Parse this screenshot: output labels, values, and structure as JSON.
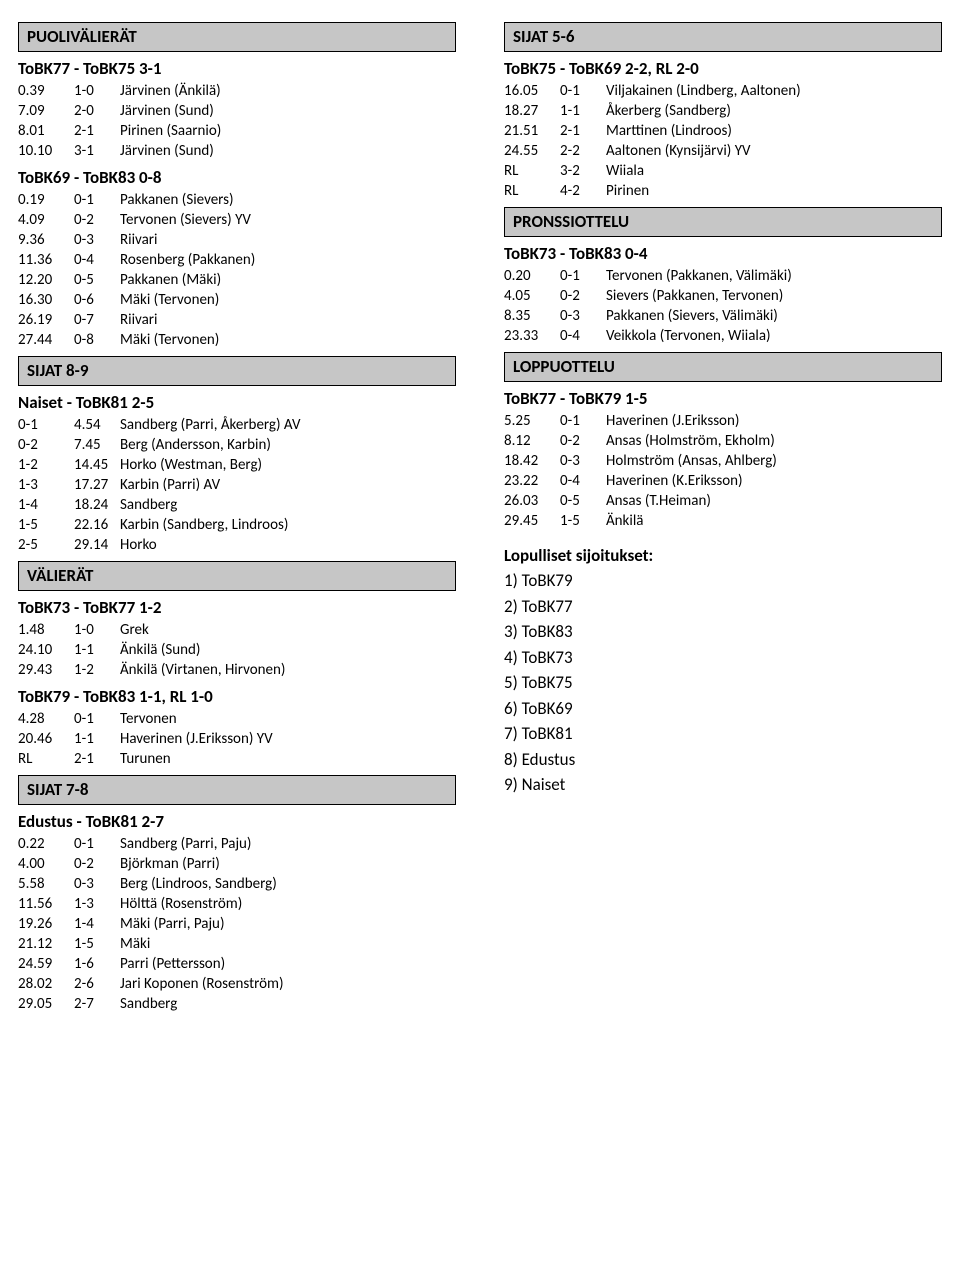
{
  "left": {
    "sec1": {
      "title": "PUOLIVÄLIERÄT",
      "match1": {
        "heading": "ToBK77 - ToBK75 3-1",
        "goals": [
          {
            "t": "0.39",
            "s": "1-0",
            "d": "Järvinen (Änkilä)"
          },
          {
            "t": "7.09",
            "s": "2-0",
            "d": "Järvinen (Sund)"
          },
          {
            "t": "8.01",
            "s": "2-1",
            "d": "Pirinen (Saarnio)"
          },
          {
            "t": "10.10",
            "s": "3-1",
            "d": "Järvinen (Sund)"
          }
        ]
      },
      "match2": {
        "heading": "ToBK69 - ToBK83 0-8",
        "goals": [
          {
            "t": "0.19",
            "s": "0-1",
            "d": "Pakkanen (Sievers)"
          },
          {
            "t": "4.09",
            "s": "0-2",
            "d": "Tervonen (Sievers) YV"
          },
          {
            "t": "9.36",
            "s": "0-3",
            "d": "Riivari"
          },
          {
            "t": "11.36",
            "s": "0-4",
            "d": "Rosenberg (Pakkanen)"
          },
          {
            "t": "12.20",
            "s": "0-5",
            "d": "Pakkanen (Mäki)"
          },
          {
            "t": "16.30",
            "s": "0-6",
            "d": "Mäki (Tervonen)"
          },
          {
            "t": "26.19",
            "s": "0-7",
            "d": "Riivari"
          },
          {
            "t": "27.44",
            "s": "0-8",
            "d": "Mäki (Tervonen)"
          }
        ]
      }
    },
    "sec2": {
      "title": "SIJAT 8-9",
      "match1": {
        "heading": "Naiset - ToBK81 2-5",
        "goals": [
          {
            "t": "0-1",
            "s": "4.54",
            "d": "Sandberg (Parri, Åkerberg) AV"
          },
          {
            "t": "0-2",
            "s": "7.45",
            "d": "Berg (Andersson, Karbin)"
          },
          {
            "t": "1-2",
            "s": "14.45",
            "d": "Horko (Westman, Berg)"
          },
          {
            "t": "1-3",
            "s": "17.27",
            "d": "Karbin (Parri) AV"
          },
          {
            "t": "1-4",
            "s": "18.24",
            "d": "Sandberg"
          },
          {
            "t": "1-5",
            "s": "22.16",
            "d": "Karbin (Sandberg, Lindroos)"
          },
          {
            "t": "2-5",
            "s": "29.14",
            "d": "Horko"
          }
        ]
      }
    },
    "sec3": {
      "title": "VÄLIERÄT",
      "match1": {
        "heading": "ToBK73 - ToBK77 1-2",
        "goals": [
          {
            "t": "1.48",
            "s": "1-0",
            "d": "Grek"
          },
          {
            "t": "24.10",
            "s": "1-1",
            "d": "Änkilä (Sund)"
          },
          {
            "t": "29.43",
            "s": "1-2",
            "d": "Änkilä (Virtanen, Hirvonen)"
          }
        ]
      },
      "match2": {
        "heading": "ToBK79 - ToBK83 1-1, RL 1-0",
        "goals": [
          {
            "t": "4.28",
            "s": "0-1",
            "d": "Tervonen"
          },
          {
            "t": "20.46",
            "s": "1-1",
            "d": "Haverinen (J.Eriksson) YV"
          },
          {
            "t": "RL",
            "s": "2-1",
            "d": "Turunen"
          }
        ]
      }
    },
    "sec4": {
      "title": "SIJAT 7-8",
      "match1": {
        "heading": "Edustus - ToBK81 2-7",
        "goals": [
          {
            "t": "0.22",
            "s": "0-1",
            "d": "Sandberg (Parri, Paju)"
          },
          {
            "t": "4.00",
            "s": "0-2",
            "d": "Björkman (Parri)"
          },
          {
            "t": "5.58",
            "s": "0-3",
            "d": "Berg (Lindroos, Sandberg)"
          },
          {
            "t": "11.56",
            "s": "1-3",
            "d": "Hölttä (Rosenström)"
          },
          {
            "t": "19.26",
            "s": "1-4",
            "d": "Mäki (Parri, Paju)"
          },
          {
            "t": "21.12",
            "s": "1-5",
            "d": "Mäki"
          },
          {
            "t": "24.59",
            "s": "1-6",
            "d": "Parri (Pettersson)"
          },
          {
            "t": "28.02",
            "s": "2-6",
            "d": "Jari Koponen (Rosenström)"
          },
          {
            "t": "29.05",
            "s": "2-7",
            "d": "Sandberg"
          }
        ]
      }
    }
  },
  "right": {
    "sec1": {
      "title": "SIJAT 5-6",
      "match1": {
        "heading": "ToBK75 - ToBK69 2-2, RL 2-0",
        "goals": [
          {
            "t": "16.05",
            "s": "0-1",
            "d": "Viljakainen (Lindberg, Aaltonen)"
          },
          {
            "t": "18.27",
            "s": "1-1",
            "d": "Åkerberg (Sandberg)"
          },
          {
            "t": "21.51",
            "s": "2-1",
            "d": "Marttinen (Lindroos)"
          },
          {
            "t": "24.55",
            "s": "2-2",
            "d": "Aaltonen (Kynsijärvi) YV"
          },
          {
            "t": "RL",
            "s": "3-2",
            "d": "Wiiala"
          },
          {
            "t": "RL",
            "s": "4-2",
            "d": "Pirinen"
          }
        ]
      }
    },
    "sec2": {
      "title": "PRONSSIOTTELU",
      "match1": {
        "heading": "ToBK73 - ToBK83 0-4",
        "goals": [
          {
            "t": "0.20",
            "s": "0-1",
            "d": "Tervonen (Pakkanen, Välimäki)"
          },
          {
            "t": "4.05",
            "s": "0-2",
            "d": "Sievers (Pakkanen, Tervonen)"
          },
          {
            "t": "8.35",
            "s": "0-3",
            "d": "Pakkanen (Sievers, Välimäki)"
          },
          {
            "t": "23.33",
            "s": "0-4",
            "d": "Veikkola (Tervonen, Wiiala)"
          }
        ]
      }
    },
    "sec3": {
      "title": "LOPPUOTTELU",
      "match1": {
        "heading": "ToBK77 - ToBK79 1-5",
        "goals": [
          {
            "t": "5.25",
            "s": "0-1",
            "d": "Haverinen (J.Eriksson)"
          },
          {
            "t": "8.12",
            "s": "0-2",
            "d": "Ansas (Holmström, Ekholm)"
          },
          {
            "t": "18.42",
            "s": "0-3",
            "d": "Holmström (Ansas, Ahlberg)"
          },
          {
            "t": "23.22",
            "s": "0-4",
            "d": "Haverinen (K.Eriksson)"
          },
          {
            "t": "26.03",
            "s": "0-5",
            "d": "Ansas (T.Heiman)"
          },
          {
            "t": "29.45",
            "s": "1-5",
            "d": "Änkilä"
          }
        ]
      }
    },
    "standings": {
      "title": "Lopulliset sijoitukset:",
      "items": [
        "1) ToBK79",
        "2) ToBK77",
        "3) ToBK83",
        "4) ToBK73",
        "5) ToBK75",
        "6) ToBK69",
        "7) ToBK81",
        "8) Edustus",
        "9) Naiset"
      ]
    }
  }
}
